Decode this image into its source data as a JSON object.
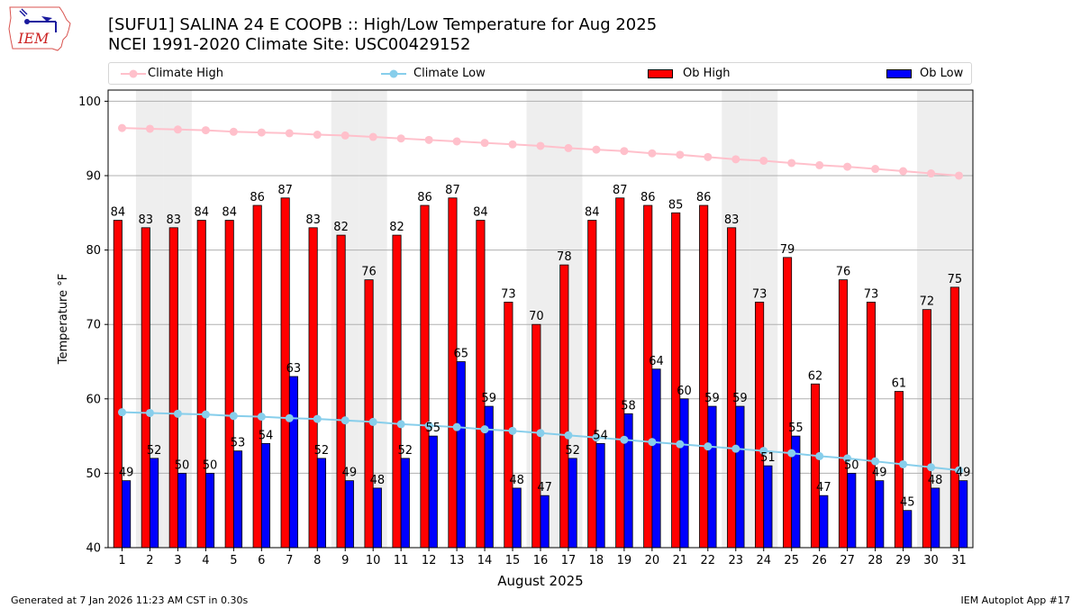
{
  "header": {
    "logo_text": "IEM",
    "title_line1": "[SUFU1] SALINA 24 E COOPB :: High/Low Temperature for Aug 2025",
    "title_line2": "NCEI 1991-2020 Climate Site: USC00429152"
  },
  "legend": {
    "items": [
      {
        "label": "Climate High",
        "kind": "line",
        "color": "#ffc0cb"
      },
      {
        "label": "Climate Low",
        "kind": "line",
        "color": "#87ceeb"
      },
      {
        "label": "Ob High",
        "kind": "bar",
        "color": "#ff0000"
      },
      {
        "label": "Ob Low",
        "kind": "bar",
        "color": "#0000ff"
      }
    ]
  },
  "footer": {
    "generated": "Generated at 7 Jan 2026 11:23 AM CST in 0.30s",
    "app": "IEM Autoplot App #17"
  },
  "chart_data": {
    "type": "bar",
    "title": "[SUFU1] SALINA 24 E COOPB :: High/Low Temperature for Aug 2025",
    "subtitle": "NCEI 1991-2020 Climate Site: USC00429152",
    "xlabel": "August 2025",
    "ylabel": "Temperature °F",
    "ylim": [
      40,
      101.5
    ],
    "yticks": [
      40,
      50,
      60,
      70,
      80,
      90,
      100
    ],
    "grid": "horizontal",
    "legend_position": "top",
    "categories": [
      "1",
      "2",
      "3",
      "4",
      "5",
      "6",
      "7",
      "8",
      "9",
      "10",
      "11",
      "12",
      "13",
      "14",
      "15",
      "16",
      "17",
      "18",
      "19",
      "20",
      "21",
      "22",
      "23",
      "24",
      "25",
      "26",
      "27",
      "28",
      "29",
      "30",
      "31"
    ],
    "weekend_shading_days": [
      2,
      3,
      9,
      10,
      16,
      17,
      23,
      24,
      30,
      31
    ],
    "shading_color": "#eeeeee",
    "series": [
      {
        "name": "Ob High",
        "type": "bar",
        "color": "#ff0000",
        "values": [
          84,
          83,
          83,
          84,
          84,
          86,
          87,
          83,
          82,
          76,
          82,
          86,
          87,
          84,
          73,
          70,
          78,
          84,
          87,
          86,
          85,
          86,
          83,
          73,
          79,
          62,
          76,
          73,
          61,
          72,
          75
        ]
      },
      {
        "name": "Ob Low",
        "type": "bar",
        "color": "#0000ff",
        "values": [
          49,
          52,
          50,
          50,
          53,
          54,
          63,
          52,
          49,
          48,
          52,
          55,
          65,
          59,
          48,
          47,
          52,
          54,
          58,
          64,
          60,
          59,
          59,
          51,
          55,
          47,
          50,
          49,
          45,
          48,
          49
        ]
      },
      {
        "name": "Climate High",
        "type": "line",
        "color": "#ffc0cb",
        "values": [
          96.4,
          96.3,
          96.2,
          96.1,
          95.9,
          95.8,
          95.7,
          95.5,
          95.4,
          95.2,
          95.0,
          94.8,
          94.6,
          94.4,
          94.2,
          94.0,
          93.7,
          93.5,
          93.3,
          93.0,
          92.8,
          92.5,
          92.2,
          92.0,
          91.7,
          91.4,
          91.2,
          90.9,
          90.6,
          90.3,
          90.0
        ]
      },
      {
        "name": "Climate Low",
        "type": "line",
        "color": "#87ceeb",
        "values": [
          58.2,
          58.1,
          58.0,
          57.9,
          57.7,
          57.6,
          57.4,
          57.3,
          57.1,
          56.9,
          56.6,
          56.4,
          56.2,
          55.9,
          55.7,
          55.4,
          55.1,
          54.8,
          54.5,
          54.2,
          53.9,
          53.6,
          53.3,
          53.0,
          52.7,
          52.3,
          52.0,
          51.6,
          51.2,
          50.8,
          50.4
        ]
      }
    ]
  }
}
